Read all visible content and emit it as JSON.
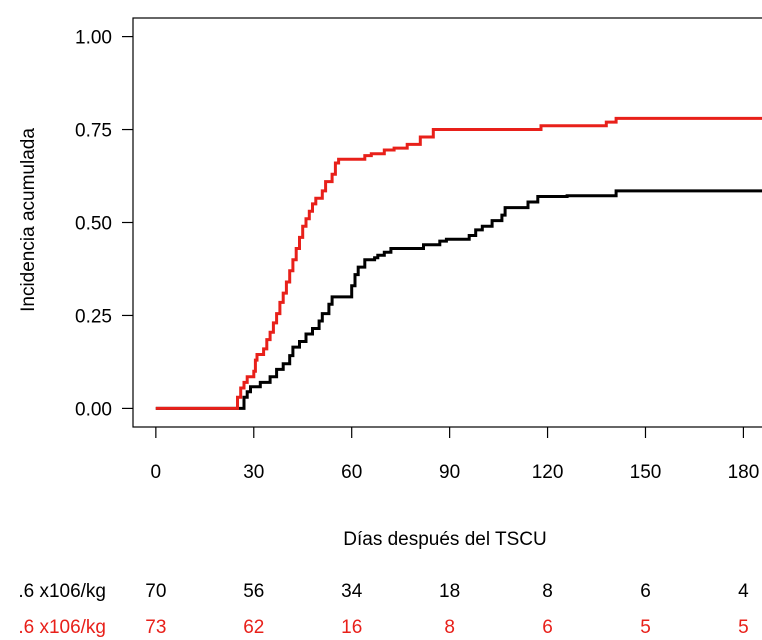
{
  "chart_data": {
    "type": "line",
    "step": true,
    "title": "",
    "xlabel": "Días después del TSCU",
    "ylabel": "Incidencia acumulada",
    "xlim": [
      -7,
      186
    ],
    "ylim": [
      -0.05,
      1.05
    ],
    "x_ticks": [
      0,
      30,
      60,
      90,
      120,
      150,
      180
    ],
    "x_tick_labels": [
      "0",
      "30",
      "60",
      "90",
      "120",
      "150",
      "180"
    ],
    "y_ticks": [
      0,
      0.25,
      0.5,
      0.75,
      1.0
    ],
    "y_tick_labels": [
      "0.00",
      "0.25",
      "0.50",
      "0.75",
      "1.00"
    ],
    "grid": false,
    "series": [
      {
        "color": "#000000",
        "points": [
          [
            0,
            0
          ],
          [
            26,
            0
          ],
          [
            27,
            0.03
          ],
          [
            28,
            0.045
          ],
          [
            29,
            0.058
          ],
          [
            32,
            0.07
          ],
          [
            35,
            0.085
          ],
          [
            37,
            0.105
          ],
          [
            39,
            0.12
          ],
          [
            41,
            0.142
          ],
          [
            42,
            0.165
          ],
          [
            44,
            0.18
          ],
          [
            46,
            0.2
          ],
          [
            48,
            0.215
          ],
          [
            50,
            0.235
          ],
          [
            51,
            0.255
          ],
          [
            53,
            0.28
          ],
          [
            54,
            0.3
          ],
          [
            59,
            0.3
          ],
          [
            60,
            0.33
          ],
          [
            61,
            0.36
          ],
          [
            62,
            0.38
          ],
          [
            64,
            0.4
          ],
          [
            67,
            0.405
          ],
          [
            68,
            0.412
          ],
          [
            70,
            0.42
          ],
          [
            72,
            0.43
          ],
          [
            82,
            0.44
          ],
          [
            87,
            0.45
          ],
          [
            89,
            0.455
          ],
          [
            96,
            0.465
          ],
          [
            98,
            0.48
          ],
          [
            100,
            0.49
          ],
          [
            103,
            0.505
          ],
          [
            106,
            0.52
          ],
          [
            107,
            0.54
          ],
          [
            114,
            0.555
          ],
          [
            117,
            0.57
          ],
          [
            126,
            0.572
          ],
          [
            141,
            0.585
          ],
          [
            186,
            0.585
          ]
        ]
      },
      {
        "color": "#e8201a",
        "points": [
          [
            0,
            0
          ],
          [
            24,
            0
          ],
          [
            25,
            0.03
          ],
          [
            26,
            0.055
          ],
          [
            27,
            0.07
          ],
          [
            28,
            0.085
          ],
          [
            30,
            0.1
          ],
          [
            30.5,
            0.13
          ],
          [
            31,
            0.145
          ],
          [
            33,
            0.16
          ],
          [
            34,
            0.185
          ],
          [
            35,
            0.205
          ],
          [
            36,
            0.23
          ],
          [
            37,
            0.255
          ],
          [
            38,
            0.285
          ],
          [
            39,
            0.31
          ],
          [
            40,
            0.34
          ],
          [
            41,
            0.37
          ],
          [
            42,
            0.4
          ],
          [
            43,
            0.43
          ],
          [
            44,
            0.46
          ],
          [
            45,
            0.49
          ],
          [
            46,
            0.51
          ],
          [
            47,
            0.53
          ],
          [
            48,
            0.55
          ],
          [
            49,
            0.565
          ],
          [
            51,
            0.585
          ],
          [
            52,
            0.61
          ],
          [
            54,
            0.63
          ],
          [
            55,
            0.66
          ],
          [
            56,
            0.67
          ],
          [
            63,
            0.67
          ],
          [
            64,
            0.68
          ],
          [
            66,
            0.685
          ],
          [
            70,
            0.695
          ],
          [
            73,
            0.7
          ],
          [
            77,
            0.71
          ],
          [
            81,
            0.73
          ],
          [
            85,
            0.75
          ],
          [
            117,
            0.75
          ],
          [
            118,
            0.76
          ],
          [
            138,
            0.77
          ],
          [
            141,
            0.78
          ],
          [
            186,
            0.78
          ]
        ]
      }
    ],
    "risk_table": {
      "times": [
        0,
        30,
        60,
        90,
        120,
        150,
        180
      ],
      "rows": [
        {
          "label": ".6 x106/kg",
          "color": "#000000",
          "values": [
            "70",
            "56",
            "34",
            "18",
            "8",
            "6",
            "4"
          ]
        },
        {
          "label": ".6 x106/kg",
          "color": "#e8201a",
          "values": [
            "73",
            "62",
            "16",
            "8",
            "6",
            "5",
            "5"
          ]
        }
      ]
    }
  }
}
